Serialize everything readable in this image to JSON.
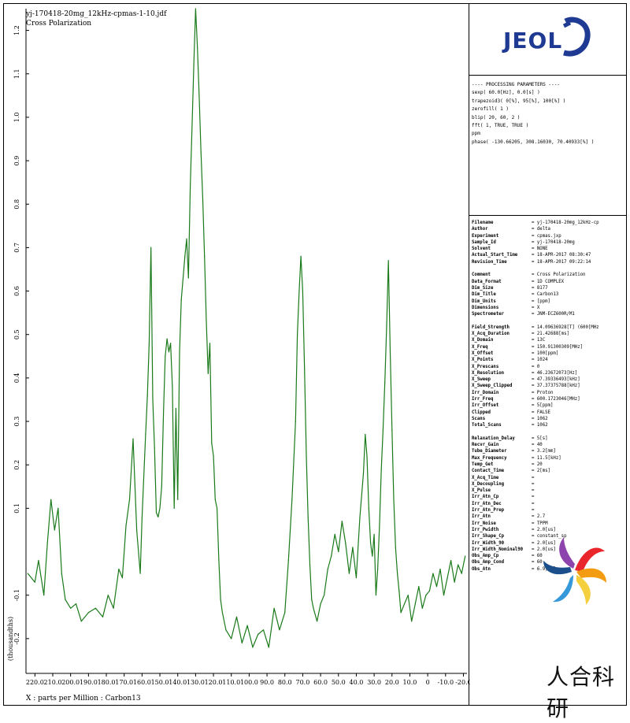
{
  "header": {
    "filename": "yj-170418-20mg_12kHz-cpmas-1-10.jdf",
    "subtitle": "Cross Polarization"
  },
  "chart_data": {
    "type": "line",
    "xlabel": "X : parts per Million : Carbon13",
    "ylabel": "(thousandths)",
    "x_reversed": true,
    "xlim": [
      225,
      -22
    ],
    "ylim": [
      -0.28,
      1.25
    ],
    "xticks": [
      220.0,
      210.0,
      200.0,
      190.0,
      180.0,
      170.0,
      160.0,
      150.0,
      140.0,
      130.0,
      120.0,
      110.0,
      100.0,
      90.0,
      80.0,
      70.0,
      60.0,
      50.0,
      40.0,
      30.0,
      20.0,
      10.0,
      0,
      -10.0,
      -20.0
    ],
    "xtick_labels": [
      "220.0",
      "210.0",
      "200.0",
      "190.0",
      "180.0",
      "170.0",
      "160.0",
      "150.0",
      "140.0",
      "130.0",
      "120.0",
      "110.0",
      "100.0",
      "90.0",
      "80.0",
      "70.0",
      "60.0",
      "50.0",
      "40.0",
      "30.0",
      "20.0",
      "10.0",
      "0",
      "-10.0",
      "-20.0"
    ],
    "yticks": [
      1.2,
      1.1,
      1.0,
      0.9,
      0.8,
      0.7,
      0.6,
      0.5,
      0.4,
      0.3,
      0.2,
      0.1,
      -0.1,
      -0.2
    ],
    "ytick_labels": [
      "1.2",
      "1.1",
      "1.0",
      "0.9",
      "0.8",
      "0.7",
      "0.6",
      "0.5",
      "0.4",
      "0.3",
      "0.2",
      "0.1",
      "-0.1",
      "-0.2"
    ],
    "series": [
      {
        "color": "#1a7a1a",
        "x": [
          224,
          220,
          218,
          215,
          213,
          211,
          209,
          207,
          205,
          203,
          200,
          197,
          194,
          190,
          186,
          182,
          179,
          176,
          173,
          171,
          169,
          167,
          165,
          163,
          161,
          160,
          158,
          157,
          156,
          155,
          154,
          153,
          152,
          151,
          150,
          149,
          148,
          147,
          146,
          145,
          144,
          143,
          142,
          141,
          140,
          139,
          138,
          137,
          136,
          135,
          134,
          133,
          132,
          131,
          130,
          129,
          128,
          127,
          126,
          125,
          124,
          123,
          122,
          121,
          120,
          119,
          118,
          117,
          116,
          115,
          113,
          110,
          107,
          104,
          101,
          98,
          95,
          92,
          89,
          86,
          83,
          80,
          78,
          76,
          74,
          73,
          72,
          71,
          70,
          69,
          68,
          67,
          66,
          65,
          64,
          62,
          60,
          58,
          56,
          54,
          52,
          50,
          48,
          46,
          44,
          42,
          40,
          38,
          36,
          35,
          34,
          33,
          32,
          31,
          30,
          29,
          28,
          27,
          26,
          25,
          24,
          23,
          22,
          21,
          20,
          19,
          18,
          17,
          16,
          15,
          13,
          11,
          9,
          7,
          5,
          3,
          1,
          -1,
          -3,
          -5,
          -7,
          -9,
          -11,
          -13,
          -15,
          -17,
          -19,
          -21
        ],
        "y": [
          -0.05,
          -0.07,
          -0.02,
          -0.1,
          0.02,
          0.12,
          0.05,
          0.1,
          -0.05,
          -0.11,
          -0.13,
          -0.12,
          -0.16,
          -0.14,
          -0.13,
          -0.15,
          -0.1,
          -0.13,
          -0.04,
          -0.06,
          0.06,
          0.12,
          0.26,
          0.05,
          -0.05,
          0.08,
          0.27,
          0.36,
          0.48,
          0.7,
          0.35,
          0.24,
          0.09,
          0.08,
          0.1,
          0.15,
          0.32,
          0.45,
          0.49,
          0.46,
          0.48,
          0.38,
          0.1,
          0.33,
          0.12,
          0.46,
          0.58,
          0.63,
          0.68,
          0.72,
          0.63,
          0.84,
          0.98,
          1.12,
          1.25,
          1.16,
          1.05,
          0.92,
          0.81,
          0.68,
          0.53,
          0.41,
          0.48,
          0.25,
          0.22,
          0.12,
          0.1,
          -0.02,
          -0.11,
          -0.14,
          -0.18,
          -0.2,
          -0.15,
          -0.21,
          -0.17,
          -0.22,
          -0.19,
          -0.18,
          -0.22,
          -0.13,
          -0.18,
          -0.14,
          -0.02,
          0.12,
          0.3,
          0.5,
          0.6,
          0.68,
          0.6,
          0.42,
          0.22,
          0.08,
          -0.03,
          -0.11,
          -0.13,
          -0.16,
          -0.12,
          -0.1,
          -0.04,
          -0.01,
          0.04,
          0.0,
          0.07,
          0.02,
          -0.05,
          0.01,
          -0.06,
          0.08,
          0.18,
          0.27,
          0.22,
          0.1,
          0.02,
          -0.01,
          0.04,
          -0.1,
          -0.04,
          0.06,
          0.19,
          0.28,
          0.39,
          0.52,
          0.67,
          0.46,
          0.28,
          0.12,
          0.01,
          -0.05,
          -0.09,
          -0.14,
          -0.12,
          -0.1,
          -0.16,
          -0.12,
          -0.08,
          -0.13,
          -0.1,
          -0.09,
          -0.05,
          -0.08,
          -0.04,
          -0.1,
          -0.06,
          -0.02,
          -0.07,
          -0.03,
          -0.05,
          -0.01
        ]
      }
    ]
  },
  "logo": {
    "text": "JEOL"
  },
  "processing": {
    "lines": [
      "---- PROCESSING PARAMETERS ----",
      "sexp( 60.0[Hz], 0.0[s] )",
      "trapezoid3( 0[%], 95[%], 100[%] )",
      "zerofill( 1 )",
      "blip( 20, 60, 2 )",
      "fft( 1, TRUE, TRUE )",
      "ppm",
      "phase( -130.66205, 308.16030, 70.40933[%] )"
    ]
  },
  "params": [
    {
      "k": "Filename",
      "v": "= yj-170418-20mg_12kHz-cp"
    },
    {
      "k": "Author",
      "v": "= delta"
    },
    {
      "k": "Experiment",
      "v": "= cpmas.jxp"
    },
    {
      "k": "Sample_Id",
      "v": "= yj-170418-20mg"
    },
    {
      "k": "Solvent",
      "v": "= NONE"
    },
    {
      "k": "Actual_Start_Time",
      "v": "= 18-APR-2017 08:30:47"
    },
    {
      "k": "Revision_Time",
      "v": "= 18-APR-2017 09:22:14"
    },
    {
      "gap": true
    },
    {
      "k": "Comment",
      "v": "= Cross Polarization"
    },
    {
      "k": "Data_Format",
      "v": "= 1D COMPLEX"
    },
    {
      "k": "Dim_Size",
      "v": "= 8177"
    },
    {
      "k": "Dim_Title",
      "v": "= Carbon13"
    },
    {
      "k": "Dim_Units",
      "v": "= [ppm]"
    },
    {
      "k": "Dimensions",
      "v": "= X"
    },
    {
      "k": "Spectrometer",
      "v": "= JNM-ECZ600R/M1"
    },
    {
      "gap": true
    },
    {
      "k": "Field_Strength",
      "v": "= 14.09636928[T] (600[MHz"
    },
    {
      "k": "X_Acq_Duration",
      "v": "= 21.42688[ms]"
    },
    {
      "k": "X_Domain",
      "v": "= 13C"
    },
    {
      "k": "X_Freq",
      "v": "= 150.91300309[MHz]"
    },
    {
      "k": "X_Offset",
      "v": "= 100[ppm]"
    },
    {
      "k": "X_Points",
      "v": "= 1024"
    },
    {
      "k": "X_Prescans",
      "v": "= 0"
    },
    {
      "k": "X_Resolution",
      "v": "= 46.23672073[Hz]"
    },
    {
      "k": "X_Sweep",
      "v": "= 47.39336493[kHz]"
    },
    {
      "k": "X_Sweep_Clipped",
      "v": "= 37.37375788[kHz]"
    },
    {
      "k": "Irr_Domain",
      "v": "= Proton"
    },
    {
      "k": "Irr_Freq",
      "v": "= 600.1723046[MHz]"
    },
    {
      "k": "Irr_Offset",
      "v": "= 5[ppm]"
    },
    {
      "k": "Clipped",
      "v": "= FALSE"
    },
    {
      "k": "Scans",
      "v": "= 1062"
    },
    {
      "k": "Total_Scans",
      "v": "= 1062"
    },
    {
      "gap": true
    },
    {
      "k": "Relaxation_Delay",
      "v": "= 5[s]"
    },
    {
      "k": "Recvr_Gain",
      "v": "= 40"
    },
    {
      "k": "Tube_Diameter",
      "v": "= 3.2[mm]"
    },
    {
      "k": "Max_Frequency",
      "v": "= 11.5[kHz]"
    },
    {
      "k": "Temp_Get",
      "v": "= 20"
    },
    {
      "k": "Contact_Time",
      "v": "= 2[ms]"
    },
    {
      "k": "X_Acq_Time",
      "v": "="
    },
    {
      "k": "X_Decoupling",
      "v": "="
    },
    {
      "k": "X_Pulse",
      "v": "="
    },
    {
      "k": "Irr_Atn_Cp",
      "v": "="
    },
    {
      "k": "Irr_Atn_Dec",
      "v": "="
    },
    {
      "k": "Irr_Atn_Prep",
      "v": "="
    },
    {
      "k": "Irr_Atn",
      "v": "= 2.7"
    },
    {
      "k": "Irr_Noise",
      "v": "= TPPM"
    },
    {
      "k": "Irr_Pwidth",
      "v": "= 2.0[us]"
    },
    {
      "k": "Irr_Shape_Cp",
      "v": "= constant_sp"
    },
    {
      "k": "Irr_Width_90",
      "v": "= 2.0[us]"
    },
    {
      "k": "Irr_Width_Nominal90",
      "v": "= 2.0[us]"
    },
    {
      "k": "Obs_Amp_Cp",
      "v": "= 60"
    },
    {
      "k": "Obs_Amp_Cond",
      "v": "= 60"
    },
    {
      "k": "Obs_Atn",
      "v": "= 6.9[dB]"
    }
  ],
  "watermark": {
    "text": "人合科研"
  }
}
